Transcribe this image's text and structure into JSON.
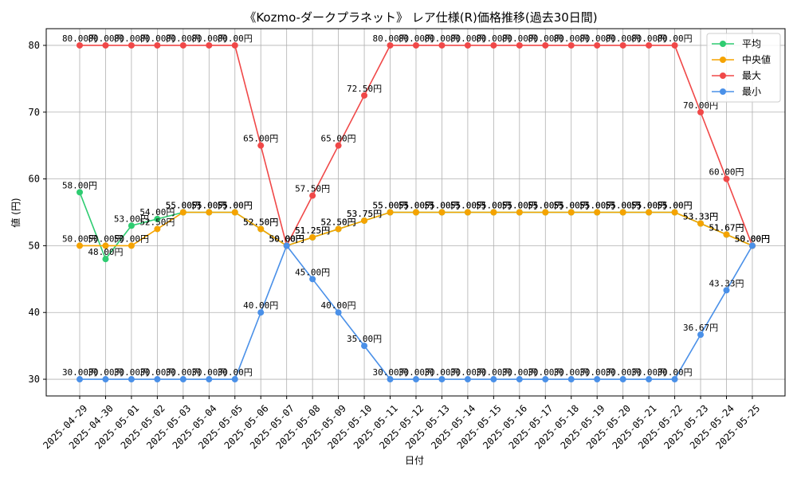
{
  "chart_data": {
    "type": "line",
    "title": "《Kozmo-ダークプラネット》 レア仕様(R)価格推移(過去30日間)",
    "xlabel": "日付",
    "ylabel": "値 (円)",
    "ylim": [
      27.5,
      82.5
    ],
    "yticks": [
      30,
      40,
      50,
      60,
      70,
      80
    ],
    "grid": true,
    "legend_position": "top-right",
    "value_suffix": "円",
    "x": [
      "2025-04-29",
      "2025-04-30",
      "2025-05-01",
      "2025-05-02",
      "2025-05-03",
      "2025-05-04",
      "2025-05-05",
      "2025-05-06",
      "2025-05-07",
      "2025-05-08",
      "2025-05-09",
      "2025-05-10",
      "2025-05-11",
      "2025-05-12",
      "2025-05-13",
      "2025-05-14",
      "2025-05-15",
      "2025-05-16",
      "2025-05-17",
      "2025-05-18",
      "2025-05-19",
      "2025-05-20",
      "2025-05-21",
      "2025-05-22",
      "2025-05-23",
      "2025-05-24",
      "2025-05-25"
    ],
    "series": [
      {
        "name": "平均",
        "color": "#2ecc71",
        "values": [
          58,
          48,
          53,
          54,
          55,
          55,
          55,
          52.5,
          50,
          51.25,
          52.5,
          53.75,
          55,
          55,
          55,
          55,
          55,
          55,
          55,
          55,
          55,
          55,
          55,
          55,
          53.33,
          51.67,
          50
        ]
      },
      {
        "name": "中央値",
        "color": "#f5a300",
        "values": [
          50,
          50,
          50,
          52.5,
          55,
          55,
          55,
          52.5,
          50,
          51.25,
          52.5,
          53.75,
          55,
          55,
          55,
          55,
          55,
          55,
          55,
          55,
          55,
          55,
          55,
          55,
          53.33,
          51.67,
          50
        ]
      },
      {
        "name": "最大",
        "color": "#f04848",
        "values": [
          80,
          80,
          80,
          80,
          80,
          80,
          80,
          65,
          50,
          57.5,
          65,
          72.5,
          80,
          80,
          80,
          80,
          80,
          80,
          80,
          80,
          80,
          80,
          80,
          80,
          70,
          60,
          50
        ]
      },
      {
        "name": "最小",
        "color": "#4a90e8",
        "values": [
          30,
          30,
          30,
          30,
          30,
          30,
          30,
          40,
          50,
          45,
          40,
          35,
          30,
          30,
          30,
          30,
          30,
          30,
          30,
          30,
          30,
          30,
          30,
          30,
          36.67,
          43.33,
          50
        ]
      }
    ]
  }
}
